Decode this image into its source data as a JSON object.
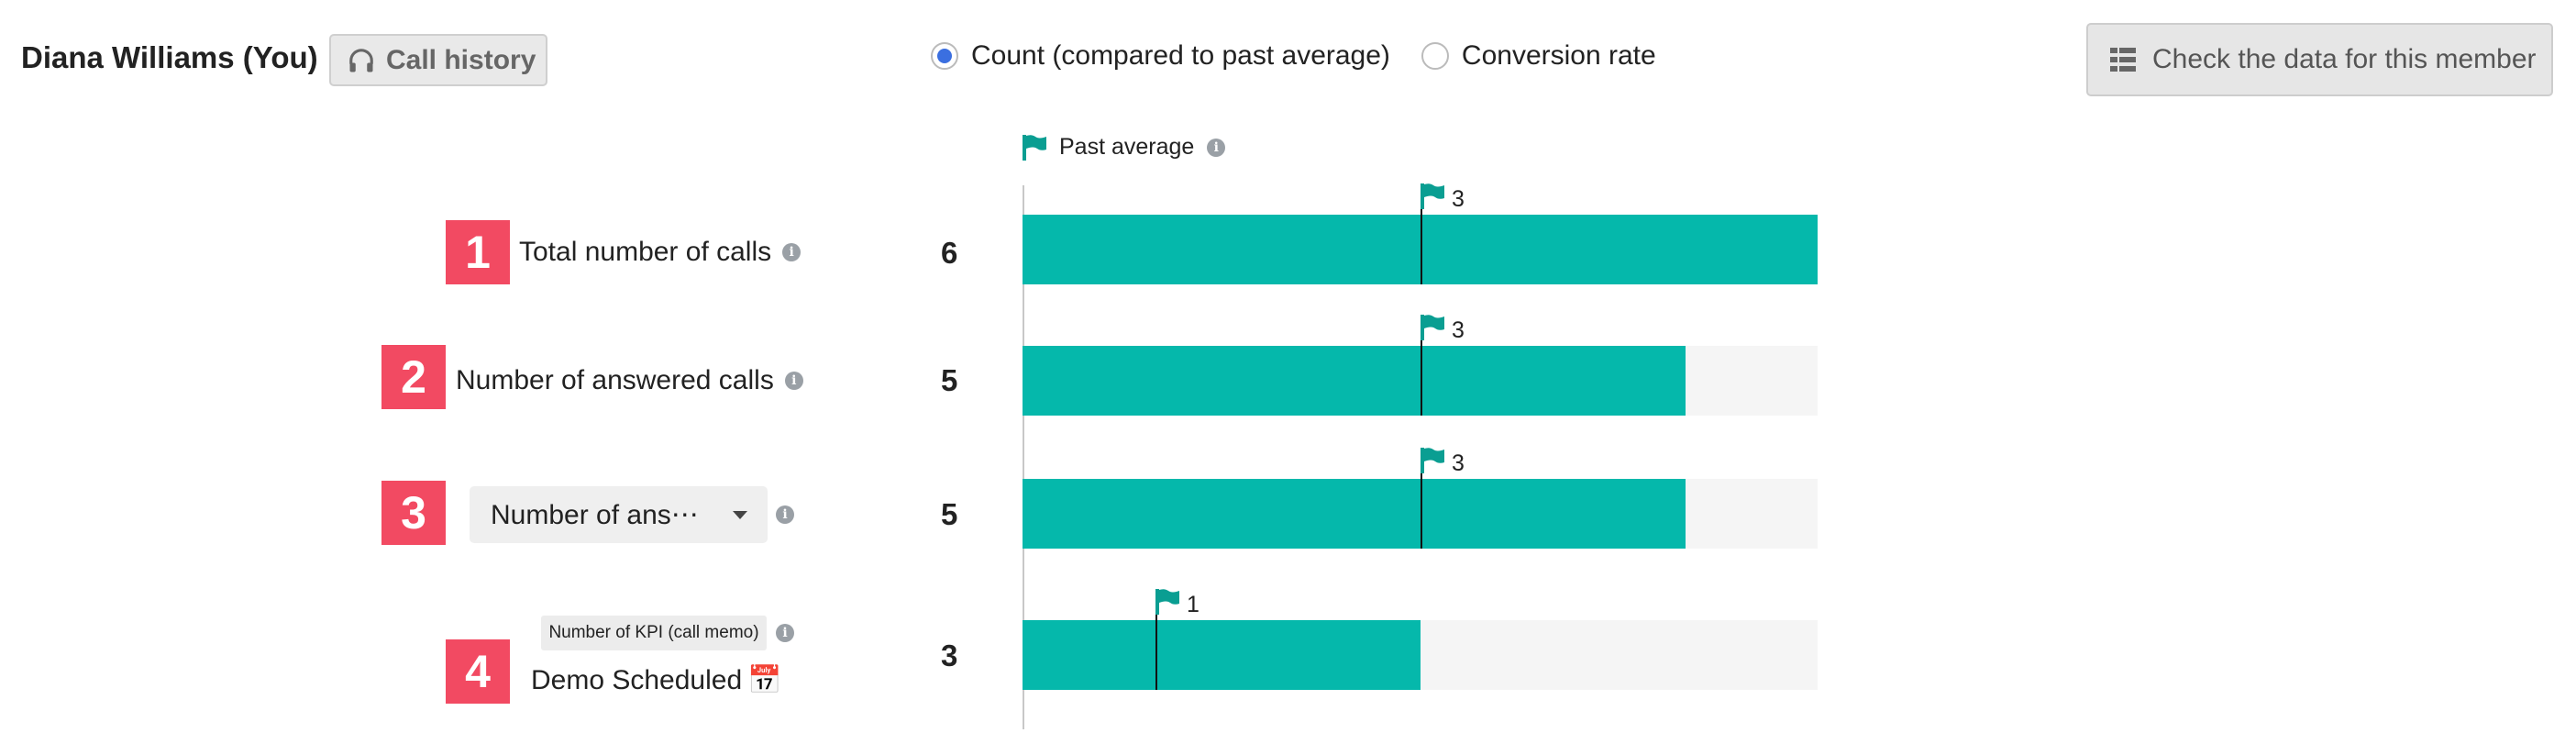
{
  "header": {
    "member_name": "Diana Williams (You)",
    "call_history_label": "Call history",
    "radio_options": [
      {
        "label": "Count (compared to past average)",
        "selected": true
      },
      {
        "label": "Conversion rate",
        "selected": false
      }
    ],
    "check_data_label": "Check the data for this member"
  },
  "legend": {
    "past_average_label": "Past average"
  },
  "rows": [
    {
      "index": "1",
      "label": "Total number of calls",
      "value": "6"
    },
    {
      "index": "2",
      "label": "Number of answered calls",
      "value": "5"
    },
    {
      "index": "3",
      "dropdown_label": "Number of ans⋯",
      "value": "5"
    },
    {
      "index": "4",
      "kpi_tag": "Number of KPI (call memo)",
      "label": "Demo Scheduled",
      "emoji": "📅",
      "value": "3"
    }
  ],
  "chart_data": {
    "type": "bar",
    "orientation": "horizontal",
    "categories": [
      "Total number of calls",
      "Number of answered calls",
      "Number of ans⋯",
      "Demo Scheduled"
    ],
    "series": [
      {
        "values": [
          6,
          5,
          5,
          3
        ]
      }
    ],
    "past_average": [
      3,
      3,
      3,
      1
    ],
    "xlim": [
      0,
      6
    ],
    "colors": {
      "bar": "#05b8ab",
      "track": "#f5f5f5",
      "flag": "#0a9e92",
      "badge": "#f24a62"
    }
  }
}
